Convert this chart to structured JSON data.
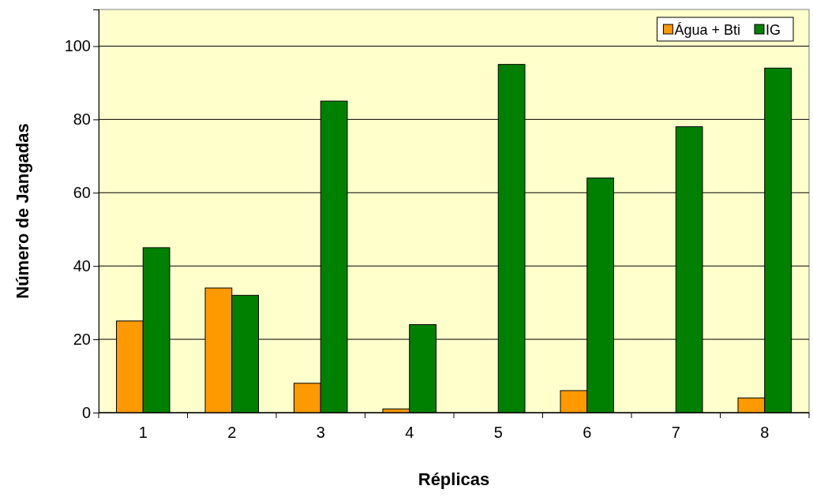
{
  "chart_data": {
    "type": "bar",
    "xlabel": "Réplicas",
    "ylabel": "Número de Jangadas",
    "categories": [
      "1",
      "2",
      "3",
      "4",
      "5",
      "6",
      "7",
      "8"
    ],
    "series": [
      {
        "name": "Água + Bti",
        "color": "#ff9900",
        "values": [
          25,
          34,
          8,
          1,
          0,
          6,
          0,
          4
        ]
      },
      {
        "name": "IG",
        "color": "#008000",
        "values": [
          45,
          32,
          85,
          24,
          95,
          64,
          78,
          94
        ]
      }
    ],
    "ylim": [
      0,
      110
    ],
    "yticks": [
      0,
      20,
      40,
      60,
      80,
      100
    ],
    "grid": "y",
    "legend": "top right"
  }
}
